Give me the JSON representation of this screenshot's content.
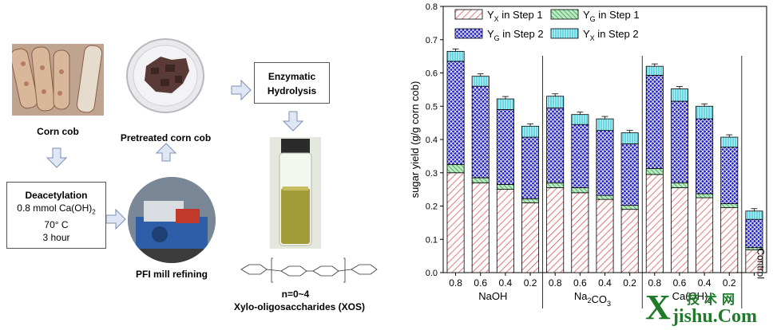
{
  "diagram": {
    "corn_cob_label": "Corn cob",
    "pretreated_label": "Pretreated corn cob",
    "deacetylation": {
      "title": "Deacetylation",
      "line1": "0.8 mmol Ca(OH)",
      "line1_sub": "2",
      "line2": "70° C",
      "line3": "3 hour"
    },
    "pfi_label": "PFI mill refining",
    "enzymatic": {
      "line1": "Enzymatic",
      "line2": "Hydrolysis"
    },
    "n_label": "n=0~4",
    "xos_label": "Xylo-oligosaccharides (XOS)"
  },
  "watermark": {
    "top": "技术网",
    "bottom": "jishu.Com",
    "letter": "X"
  },
  "chart_data": {
    "type": "bar",
    "stacked": true,
    "ylabel": "sugar yield (g/g corn cob)",
    "ylim": [
      0,
      0.8
    ],
    "yticks": [
      "0.0",
      "0.1",
      "0.2",
      "0.3",
      "0.4",
      "0.5",
      "0.6",
      "0.7",
      "0.8"
    ],
    "categories": [
      "0.8",
      "0.6",
      "0.4",
      "0.2",
      "0.8",
      "0.6",
      "0.4",
      "0.2",
      "0.8",
      "0.6",
      "0.4",
      "0.2",
      "Control"
    ],
    "groups": [
      {
        "label": "NaOH",
        "sub": ""
      },
      {
        "label": "Na",
        "sub": "2",
        "label2": "CO",
        "sub2": "3"
      },
      {
        "label": "Ca(OH)",
        "sub": "2"
      }
    ],
    "series": [
      {
        "name": "Y",
        "sub": "X",
        "rest": " in Step 1",
        "color": "#d94040",
        "values": [
          0.3,
          0.27,
          0.25,
          0.21,
          0.255,
          0.24,
          0.22,
          0.19,
          0.295,
          0.255,
          0.225,
          0.195,
          0.068
        ]
      },
      {
        "name": "Y",
        "sub": "G",
        "rest": " in Step 1",
        "color": "#2fa34a",
        "values": [
          0.025,
          0.015,
          0.015,
          0.012,
          0.015,
          0.015,
          0.012,
          0.012,
          0.018,
          0.015,
          0.012,
          0.012,
          0.007
        ]
      },
      {
        "name": "Y",
        "sub": "G",
        "rest": " in Step 2",
        "color": "#1f1fd0",
        "values": [
          0.31,
          0.275,
          0.225,
          0.185,
          0.225,
          0.19,
          0.195,
          0.185,
          0.28,
          0.245,
          0.225,
          0.17,
          0.085
        ]
      },
      {
        "name": "Y",
        "sub": "X",
        "rest": " in Step 2",
        "color": "#2fc3d6",
        "values": [
          0.03,
          0.03,
          0.032,
          0.033,
          0.035,
          0.03,
          0.035,
          0.033,
          0.027,
          0.037,
          0.038,
          0.03,
          0.025
        ]
      }
    ],
    "legend": "top"
  }
}
